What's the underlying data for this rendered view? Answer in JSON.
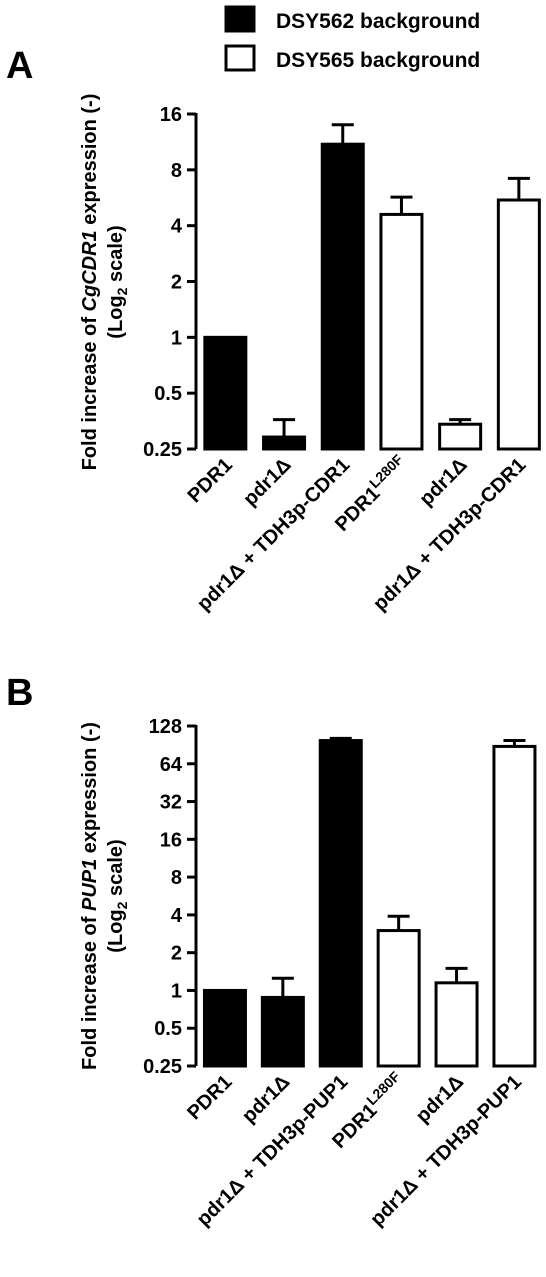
{
  "legend": {
    "items": [
      {
        "label": "DSY562 background",
        "fill": "#000000"
      },
      {
        "label": "DSY565 background",
        "fill": "#ffffff"
      }
    ]
  },
  "chart_data": [
    {
      "panel": "A",
      "type": "bar",
      "ylabel": {
        "line1": [
          "Fold increase of ",
          "CgCDR1",
          " expression (-)"
        ],
        "line2": [
          "(Log",
          "2",
          " scale)"
        ]
      },
      "scale": "log2",
      "ylim": [
        0.25,
        16
      ],
      "yticks": [
        {
          "v": 0.25,
          "label": "0.25"
        },
        {
          "v": 0.5,
          "label": "0.5"
        },
        {
          "v": 1,
          "label": "1"
        },
        {
          "v": 2,
          "label": "2"
        },
        {
          "v": 4,
          "label": "4"
        },
        {
          "v": 8,
          "label": "8"
        },
        {
          "v": 16,
          "label": "16"
        }
      ],
      "categories": [
        {
          "text": "PDR1",
          "sup": ""
        },
        {
          "text": "pdr1Δ",
          "sup": ""
        },
        {
          "text": "pdr1Δ + TDH3p-CDR1",
          "sup": ""
        },
        {
          "text": "PDR1",
          "sup": "L280F"
        },
        {
          "text": "pdr1Δ",
          "sup": ""
        },
        {
          "text": "pdr1Δ + TDH3p-CDR1",
          "sup": ""
        }
      ],
      "series_index": [
        0,
        0,
        0,
        1,
        1,
        1
      ],
      "values": [
        1.0,
        0.29,
        11.0,
        4.6,
        0.34,
        5.5
      ],
      "errors": [
        0.0,
        0.36,
        14.0,
        5.7,
        0.36,
        7.2
      ]
    },
    {
      "panel": "B",
      "type": "bar",
      "ylabel": {
        "line1": [
          "Fold increase of ",
          "PUP1",
          " expression (-)"
        ],
        "line2": [
          "(Log",
          "2",
          " scale)"
        ]
      },
      "scale": "log2",
      "ylim": [
        0.25,
        128
      ],
      "yticks": [
        {
          "v": 0.25,
          "label": "0.25"
        },
        {
          "v": 0.5,
          "label": "0.5"
        },
        {
          "v": 1,
          "label": "1"
        },
        {
          "v": 2,
          "label": "2"
        },
        {
          "v": 4,
          "label": "4"
        },
        {
          "v": 8,
          "label": "8"
        },
        {
          "v": 16,
          "label": "16"
        },
        {
          "v": 32,
          "label": "32"
        },
        {
          "v": 64,
          "label": "64"
        },
        {
          "v": 128,
          "label": "128"
        }
      ],
      "categories": [
        {
          "text": "PDR1",
          "sup": ""
        },
        {
          "text": "pdr1Δ",
          "sup": ""
        },
        {
          "text": "pdr1Δ + TDH3p-PUP1",
          "sup": ""
        },
        {
          "text": "PDR1",
          "sup": "L280F"
        },
        {
          "text": "pdr1Δ",
          "sup": ""
        },
        {
          "text": "pdr1Δ + TDH3p-PUP1",
          "sup": ""
        }
      ],
      "series_index": [
        0,
        0,
        0,
        1,
        1,
        1
      ],
      "values": [
        1.0,
        0.88,
        98.0,
        3.0,
        1.15,
        88.0
      ],
      "errors": [
        0.0,
        1.25,
        102.0,
        3.9,
        1.5,
        98.0
      ]
    }
  ]
}
